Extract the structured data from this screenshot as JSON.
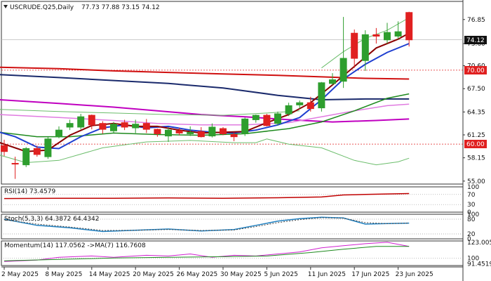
{
  "header": {
    "symbol": "USCRUDE.Q25,Daily",
    "ohlc": "77.73 77.88 73.15 74.12"
  },
  "chart_data": {
    "type": "candlestick",
    "price_axis": {
      "ticks": [
        "76.85",
        "73.60",
        "70.60",
        "67.50",
        "64.35",
        "61.25",
        "58.15",
        "55.00"
      ],
      "ylim": [
        54.6,
        79.3
      ],
      "current_price": "74.12",
      "level_70": "70.00",
      "level_60": "60.00"
    },
    "x_labels": [
      "2 May 2025",
      "8 May 2025",
      "14 May 2025",
      "20 May 2025",
      "26 May 2025",
      "30 May 2025",
      "5 Jun 2025",
      "11 Jun 2025",
      "17 Jun 2025",
      "23 Jun 2025"
    ],
    "candles": [
      {
        "o": 59.8,
        "h": 60.6,
        "l": 58.4,
        "c": 59.0
      },
      {
        "o": 57.4,
        "h": 58.3,
        "l": 55.3,
        "c": 57.3
      },
      {
        "o": 57.2,
        "h": 59.6,
        "l": 56.9,
        "c": 59.4
      },
      {
        "o": 59.4,
        "h": 59.8,
        "l": 58.3,
        "c": 58.6
      },
      {
        "o": 58.3,
        "h": 61.0,
        "l": 58.0,
        "c": 60.7
      },
      {
        "o": 61.0,
        "h": 62.4,
        "l": 60.8,
        "c": 61.9
      },
      {
        "o": 62.3,
        "h": 63.3,
        "l": 61.9,
        "c": 62.8
      },
      {
        "o": 62.3,
        "h": 64.1,
        "l": 62.0,
        "c": 63.7
      },
      {
        "o": 63.9,
        "h": 64.0,
        "l": 62.0,
        "c": 62.6
      },
      {
        "o": 62.8,
        "h": 63.1,
        "l": 61.4,
        "c": 62.0
      },
      {
        "o": 61.8,
        "h": 63.0,
        "l": 61.5,
        "c": 62.7
      },
      {
        "o": 62.9,
        "h": 63.3,
        "l": 61.9,
        "c": 62.3
      },
      {
        "o": 62.2,
        "h": 63.3,
        "l": 61.5,
        "c": 62.7
      },
      {
        "o": 62.8,
        "h": 63.4,
        "l": 61.5,
        "c": 62.0
      },
      {
        "o": 62.0,
        "h": 62.1,
        "l": 61.0,
        "c": 61.4
      },
      {
        "o": 61.1,
        "h": 62.3,
        "l": 60.3,
        "c": 61.9
      },
      {
        "o": 61.8,
        "h": 62.2,
        "l": 61.2,
        "c": 61.5
      },
      {
        "o": 61.4,
        "h": 62.4,
        "l": 61.1,
        "c": 61.6
      },
      {
        "o": 61.7,
        "h": 62.3,
        "l": 60.9,
        "c": 61.0
      },
      {
        "o": 61.1,
        "h": 62.8,
        "l": 60.9,
        "c": 62.3
      },
      {
        "o": 62.1,
        "h": 62.3,
        "l": 61.2,
        "c": 61.4
      },
      {
        "o": 61.3,
        "h": 61.6,
        "l": 60.4,
        "c": 61.0
      },
      {
        "o": 61.4,
        "h": 63.6,
        "l": 61.1,
        "c": 63.4
      },
      {
        "o": 63.3,
        "h": 64.0,
        "l": 62.9,
        "c": 63.9
      },
      {
        "o": 63.9,
        "h": 64.1,
        "l": 62.4,
        "c": 62.5
      },
      {
        "o": 62.8,
        "h": 64.4,
        "l": 62.5,
        "c": 64.1
      },
      {
        "o": 64.1,
        "h": 65.6,
        "l": 63.8,
        "c": 65.2
      },
      {
        "o": 65.3,
        "h": 65.9,
        "l": 64.8,
        "c": 65.6
      },
      {
        "o": 65.6,
        "h": 66.4,
        "l": 64.4,
        "c": 64.8
      },
      {
        "o": 64.9,
        "h": 68.4,
        "l": 64.4,
        "c": 68.3
      },
      {
        "o": 68.2,
        "h": 69.6,
        "l": 68.0,
        "c": 68.7
      },
      {
        "o": 68.5,
        "h": 77.2,
        "l": 67.6,
        "c": 71.6
      },
      {
        "o": 75.0,
        "h": 75.5,
        "l": 70.3,
        "c": 71.6
      },
      {
        "o": 71.3,
        "h": 75.4,
        "l": 69.9,
        "c": 74.8
      },
      {
        "o": 74.8,
        "h": 75.7,
        "l": 73.6,
        "c": 74.6
      },
      {
        "o": 74.1,
        "h": 76.4,
        "l": 73.6,
        "c": 75.1
      },
      {
        "o": 74.6,
        "h": 76.6,
        "l": 74.2,
        "c": 75.2
      },
      {
        "o": 77.8,
        "h": 77.9,
        "l": 73.2,
        "c": 74.1
      }
    ],
    "indicators": {
      "rsi": {
        "label": "RSI(14) 73.4579",
        "ticks": [
          "100",
          "70",
          "30",
          "0"
        ]
      },
      "stoch": {
        "label": "Stoch(5,3,3) 64.3872 64.4342",
        "ticks": [
          "100",
          "80",
          "20",
          "0"
        ]
      },
      "momentum": {
        "label": "Momentum(14) 117.0562 ->MA(7) 116.7608",
        "ticks": [
          "123.0051",
          "100",
          "91.4519"
        ]
      }
    },
    "colors": {
      "bull": "#2e9e2e",
      "bear": "#e02020",
      "red_line": "#d01010",
      "navy_line": "#1a2a6c",
      "blue_line": "#1f3fd0",
      "magenta_line": "#c000c0",
      "pink_line": "#e07be0",
      "green_line": "#1e8a1e",
      "light_green_line": "#6bbd6b",
      "darkred_line": "#8b0000"
    }
  }
}
